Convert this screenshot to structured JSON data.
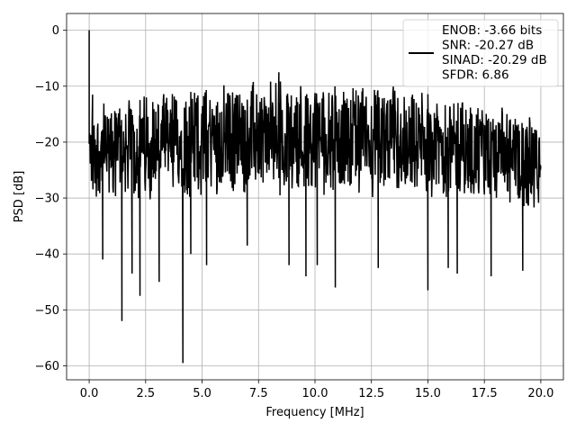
{
  "chart_data": {
    "type": "line",
    "title": "",
    "xlabel": "Frequency [MHz]",
    "ylabel": "PSD [dB]",
    "xlim": [
      -1.0,
      21.0
    ],
    "ylim": [
      -62.5,
      3.0
    ],
    "xticks": [
      0.0,
      2.5,
      5.0,
      7.5,
      10.0,
      12.5,
      15.0,
      17.5,
      20.0
    ],
    "xtick_labels": [
      "0.0",
      "2.5",
      "5.0",
      "7.5",
      "10.0",
      "12.5",
      "15.0",
      "17.5",
      "20.0"
    ],
    "yticks": [
      0,
      -10,
      -20,
      -30,
      -40,
      -50,
      -60
    ],
    "ytick_labels": [
      "0",
      "−10",
      "−20",
      "−30",
      "−40",
      "−50",
      "−60"
    ],
    "grid": true,
    "legend_position": "top-right",
    "series": [
      {
        "color": "#000000",
        "legend_lines": [
          "ENOB: -3.66 bits",
          "SNR: -20.27 dB",
          "SINAD: -20.29 dB",
          "SFDR: 6.86"
        ],
        "x_range": [
          0.0,
          20.0
        ],
        "spikes": [
          {
            "x": 0.0,
            "y": 0.0
          },
          {
            "x": 0.15,
            "y": -11.5
          },
          {
            "x": 0.6,
            "y": -41.0
          },
          {
            "x": 1.45,
            "y": -52.0
          },
          {
            "x": 1.9,
            "y": -43.5
          },
          {
            "x": 2.25,
            "y": -47.5
          },
          {
            "x": 3.1,
            "y": -45.0
          },
          {
            "x": 4.15,
            "y": -59.5
          },
          {
            "x": 4.5,
            "y": -40.0
          },
          {
            "x": 5.2,
            "y": -42.0
          },
          {
            "x": 7.0,
            "y": -38.5
          },
          {
            "x": 8.4,
            "y": -7.5
          },
          {
            "x": 8.85,
            "y": -42.0
          },
          {
            "x": 9.6,
            "y": -44.0
          },
          {
            "x": 10.1,
            "y": -42.0
          },
          {
            "x": 10.9,
            "y": -46.0
          },
          {
            "x": 12.8,
            "y": -42.5
          },
          {
            "x": 15.0,
            "y": -46.5
          },
          {
            "x": 15.9,
            "y": -42.5
          },
          {
            "x": 16.3,
            "y": -43.5
          },
          {
            "x": 17.8,
            "y": -44.0
          },
          {
            "x": 19.2,
            "y": -43.0
          }
        ]
      }
    ]
  }
}
